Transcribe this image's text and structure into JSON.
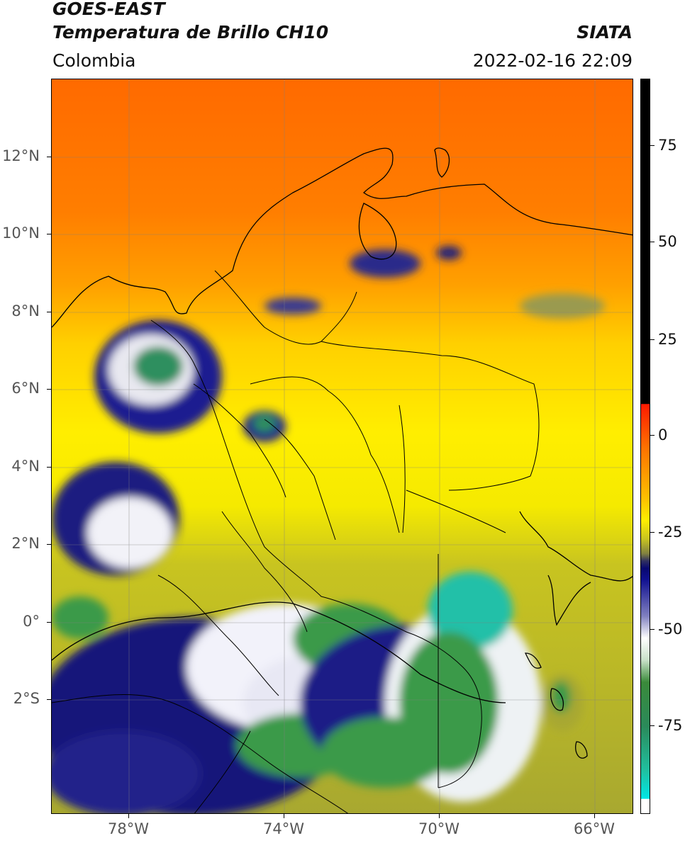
{
  "header": {
    "title_line1": "GOES-EAST",
    "title_line2": "Temperatura de Brillo CH10",
    "organization": "SIATA",
    "region": "Colombia",
    "timestamp": "2022-02-16 22:09"
  },
  "map": {
    "lat_ticks": [
      "12°N",
      "10°N",
      "8°N",
      "6°N",
      "4°N",
      "2°N",
      "0°",
      "2°S"
    ],
    "lon_ticks": [
      "78°W",
      "74°W",
      "70°W",
      "66°W"
    ],
    "extent": {
      "lon_min": -80,
      "lon_max": -65,
      "lat_min": -5,
      "lat_max": 14
    }
  },
  "colorbar": {
    "ticks": [
      "75",
      "50",
      "25",
      "0",
      "-25",
      "-50",
      "-75"
    ],
    "range": [
      -95,
      90
    ],
    "colors": {
      "hot": "#000000",
      "warm_red": "#ff2a00",
      "orange": "#ff7a00",
      "yellow": "#ffee00",
      "olive": "#9a9a30",
      "navy": "#101080",
      "white": "#ffffff",
      "green": "#2f8f3f",
      "teal": "#20d0b0",
      "cyan": "#00e6e6"
    }
  }
}
